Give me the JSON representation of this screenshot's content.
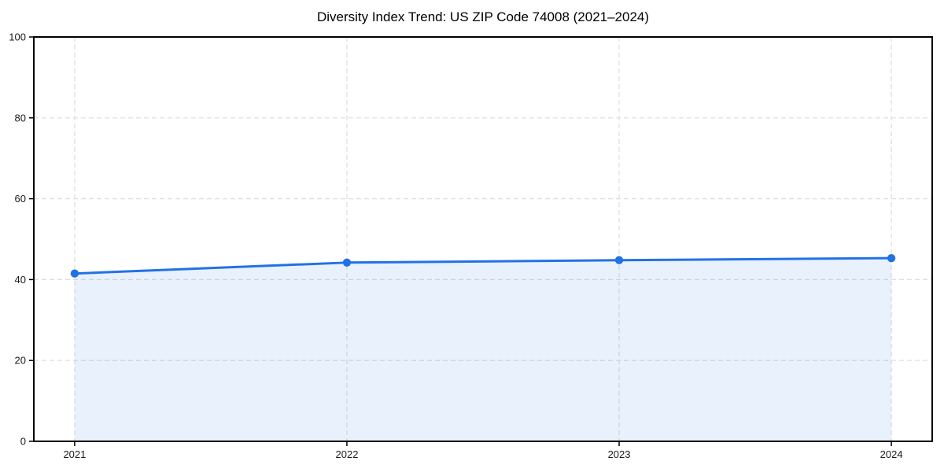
{
  "title": "Diversity Index Trend: US ZIP Code 74008 (2021–2024)",
  "colors": {
    "line": "#2272e5",
    "marker": "#2272e5",
    "fill_rgba": "rgba(34,114,229,0.10)",
    "grid": "#dedede",
    "axis": "#000000",
    "tick_text": "#1a1a1a",
    "background": "#ffffff"
  },
  "chart_data": {
    "type": "area",
    "title": "Diversity Index Trend: US ZIP Code 74008 (2021–2024)",
    "x": [
      2021,
      2022,
      2023,
      2024
    ],
    "series": [
      {
        "name": "Diversity Index",
        "values": [
          41.5,
          44.2,
          44.8,
          45.3
        ]
      }
    ],
    "xlabel": "",
    "ylabel": "",
    "ylim": [
      0,
      100
    ],
    "yticks": [
      0,
      20,
      40,
      60,
      80,
      100
    ],
    "xticks": [
      2021,
      2022,
      2023,
      2024
    ],
    "xtick_labels": [
      "2021",
      "2022",
      "2023",
      "2024"
    ],
    "ytick_labels": [
      "0",
      "20",
      "40",
      "60",
      "80",
      "100"
    ],
    "grid": true,
    "grid_style": "dashed",
    "legend": "none",
    "x_margin_fraction": 0.05
  }
}
